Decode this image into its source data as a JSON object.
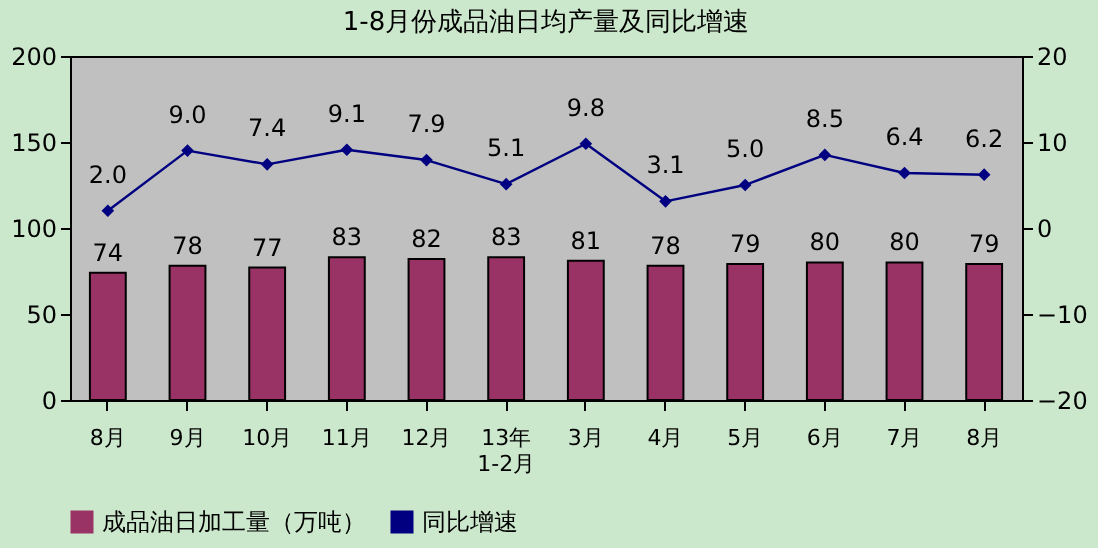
{
  "chart_data": {
    "type": "bar",
    "title": "1-8月份成品油日均产量及同比增速",
    "categories": [
      "8月",
      "9月",
      "10月",
      "11月",
      "12月",
      "13年\n1-2月",
      "3月",
      "4月",
      "5月",
      "6月",
      "7月",
      "8月"
    ],
    "series": [
      {
        "name": "成品油日加工量（万吨）",
        "type": "bar",
        "color": "#993366",
        "values": [
          74,
          78,
          77,
          83,
          82,
          83,
          81,
          78,
          79,
          80,
          80,
          79
        ]
      },
      {
        "name": "同比增速",
        "type": "line",
        "axis": "y2",
        "color": "#000080",
        "marker": "diamond",
        "values": [
          2.0,
          9.0,
          7.4,
          9.1,
          7.9,
          5.1,
          9.8,
          3.1,
          5.0,
          8.5,
          6.4,
          6.2
        ],
        "value_labels": [
          "2.0",
          "9.0",
          "7.4",
          "9.1",
          "7.9",
          "5.1",
          "9.8",
          "3.1",
          "5.0",
          "8.5",
          "6.4",
          "6.2"
        ]
      }
    ],
    "ylim": [
      0,
      200
    ],
    "yticks": [
      0,
      50,
      100,
      150,
      200
    ],
    "y2lim": [
      -20,
      20
    ],
    "y2ticks": [
      -20,
      -10,
      0,
      10,
      20
    ],
    "data_labels": true,
    "legend": "bottom"
  }
}
